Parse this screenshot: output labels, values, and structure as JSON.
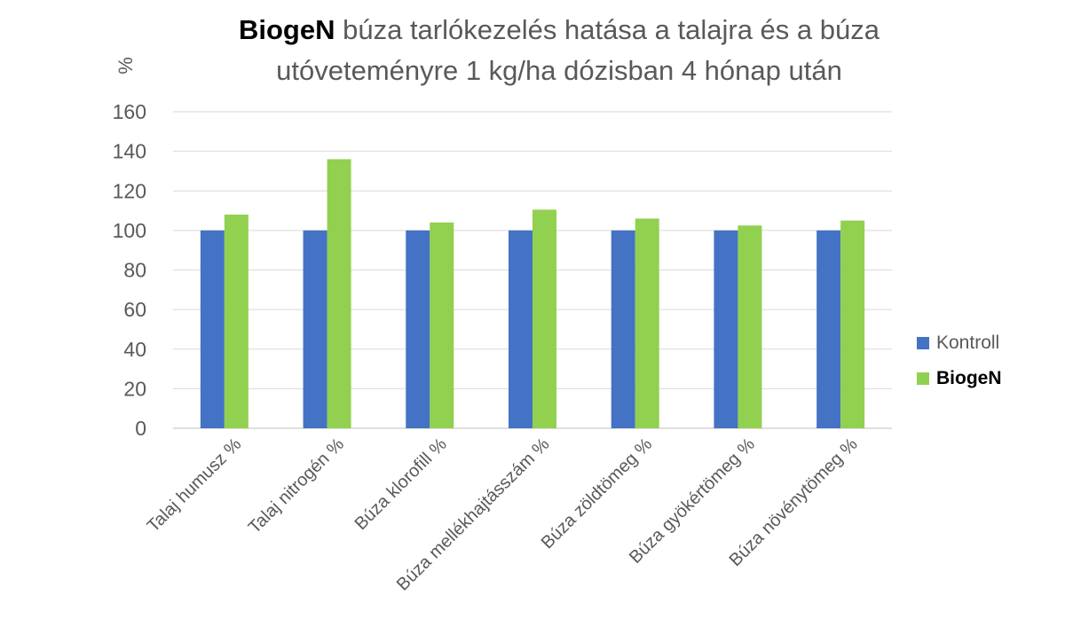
{
  "title": {
    "brand": "BiogeN",
    "line1_rest": "búza tarlókezelés hatása a talajra és a búza",
    "line2": "utóveteményre 1 kg/ha dózisban 4 hónap után"
  },
  "chart_data": {
    "type": "bar",
    "title": "BiogeN búza tarlókezelés hatása a talajra és a búza utóveteményre 1 kg/ha dózisban 4 hónap után",
    "ylabel": "%",
    "xlabel": "",
    "ylim": [
      0,
      160
    ],
    "yticks": [
      0,
      20,
      40,
      60,
      80,
      100,
      120,
      140,
      160
    ],
    "grid": true,
    "legend_position": "right",
    "categories": [
      "Talaj humusz %",
      "Talaj nitrogén %",
      "Búza klorofill %",
      "Búza mellékhajtásszám %",
      "Búza zöldtömeg %",
      "Búza gyökértömeg %",
      "Búza növénytömeg %"
    ],
    "series": [
      {
        "name": "Kontroll",
        "color": "#4472c4",
        "values": [
          100,
          100,
          100,
          100,
          100,
          100,
          100
        ]
      },
      {
        "name": "BiogeN",
        "color": "#92d050",
        "values": [
          108,
          136,
          104,
          110.5,
          106,
          102.5,
          105
        ]
      }
    ]
  }
}
